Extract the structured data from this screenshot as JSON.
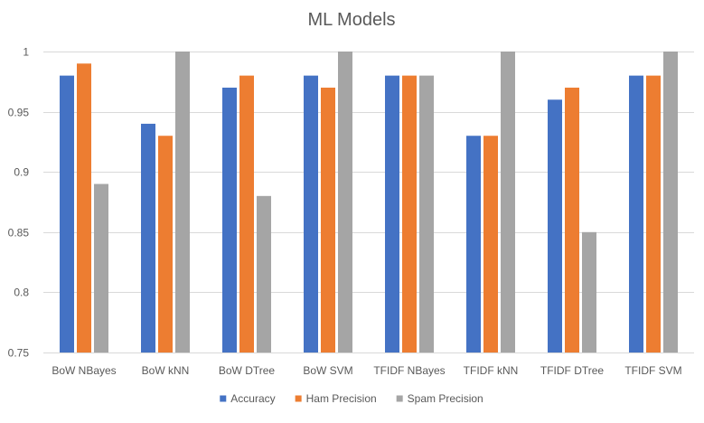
{
  "chart_data": {
    "type": "bar",
    "title": "ML Models",
    "xlabel": "",
    "ylabel": "",
    "ylim": [
      0.75,
      1
    ],
    "yticks": [
      0.75,
      0.8,
      0.85,
      0.9,
      0.95,
      1
    ],
    "ytick_labels": [
      "0.75",
      "0.8",
      "0.85",
      "0.9",
      "0.95",
      "1"
    ],
    "grid": true,
    "legend_position": "bottom",
    "categories": [
      "BoW NBayes",
      "BoW kNN",
      "BoW DTree",
      "BoW SVM",
      "TFIDF NBayes",
      "TFIDF kNN",
      "TFIDF DTree",
      "TFIDF SVM"
    ],
    "series": [
      {
        "name": "Accuracy",
        "color": "#4472c4",
        "values": [
          0.98,
          0.94,
          0.97,
          0.98,
          0.98,
          0.93,
          0.96,
          0.98
        ]
      },
      {
        "name": "Ham Precision",
        "color": "#ed7d31",
        "values": [
          0.99,
          0.93,
          0.98,
          0.97,
          0.98,
          0.93,
          0.97,
          0.98
        ]
      },
      {
        "name": "Spam Precision",
        "color": "#a5a5a5",
        "values": [
          0.89,
          1,
          0.88,
          1,
          0.98,
          1,
          0.85,
          1
        ]
      }
    ]
  }
}
